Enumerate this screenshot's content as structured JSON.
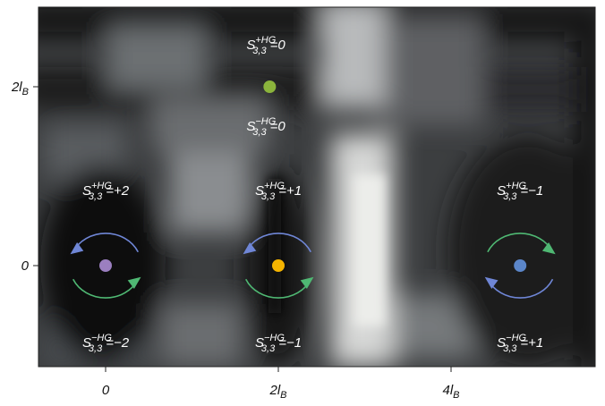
{
  "chart_data": {
    "type": "heatmap",
    "colormap": "grayscale",
    "grid": false,
    "x_axis": {
      "ticks": [
        {
          "value": 0,
          "label": "0"
        },
        {
          "value": 2,
          "label": "2l",
          "sub": "B"
        },
        {
          "value": 4,
          "label": "4l",
          "sub": "B"
        }
      ]
    },
    "y_axis": {
      "ticks": [
        {
          "value": 0,
          "label": "0"
        },
        {
          "value": 2,
          "label": "2l",
          "sub": "B"
        }
      ]
    },
    "points": [
      {
        "name": "purple",
        "x": 0,
        "y": 0,
        "color": "#9b7fc0"
      },
      {
        "name": "orange",
        "x": 2,
        "y": 0,
        "color": "#f5b400"
      },
      {
        "name": "blue",
        "x": 4.8,
        "y": 0,
        "color": "#5b86c9"
      },
      {
        "name": "green",
        "x": 1.9,
        "y": 2,
        "color": "#8bb43c"
      }
    ],
    "annotations": [
      {
        "key": "p0_top",
        "base": "S",
        "sub": "3,3",
        "sup": "+HG",
        "value": "=+2"
      },
      {
        "key": "p0_bot",
        "base": "S",
        "sub": "3,3",
        "sup": "−HG",
        "value": "=−2"
      },
      {
        "key": "p1_top",
        "base": "S",
        "sub": "3,3",
        "sup": "+HG",
        "value": "=+1"
      },
      {
        "key": "p1_bot",
        "base": "S",
        "sub": "3,3",
        "sup": "−HG",
        "value": "=−1"
      },
      {
        "key": "p2_top",
        "base": "S",
        "sub": "3,3",
        "sup": "+HG",
        "value": "=−1"
      },
      {
        "key": "p2_bot",
        "base": "S",
        "sub": "3,3",
        "sup": "−HG",
        "value": "=+1"
      },
      {
        "key": "pg_top",
        "base": "S",
        "sub": "3,3",
        "sup": "+HG",
        "value": "=0"
      },
      {
        "key": "pg_bot",
        "base": "S",
        "sub": "3,3",
        "sup": "−HG",
        "value": "=0"
      }
    ],
    "rotations": [
      {
        "name": "p0-top",
        "direction": "counter-clockwise",
        "color": "#6f86d6"
      },
      {
        "name": "p0-bottom",
        "direction": "counter-clockwise",
        "color": "#4fb873"
      },
      {
        "name": "p1-top",
        "direction": "counter-clockwise",
        "color": "#6f86d6"
      },
      {
        "name": "p1-bottom",
        "direction": "counter-clockwise",
        "color": "#4fb873"
      },
      {
        "name": "p2-top",
        "direction": "clockwise",
        "color": "#4fb873"
      },
      {
        "name": "p2-bottom",
        "direction": "clockwise",
        "color": "#6f86d6"
      }
    ]
  }
}
